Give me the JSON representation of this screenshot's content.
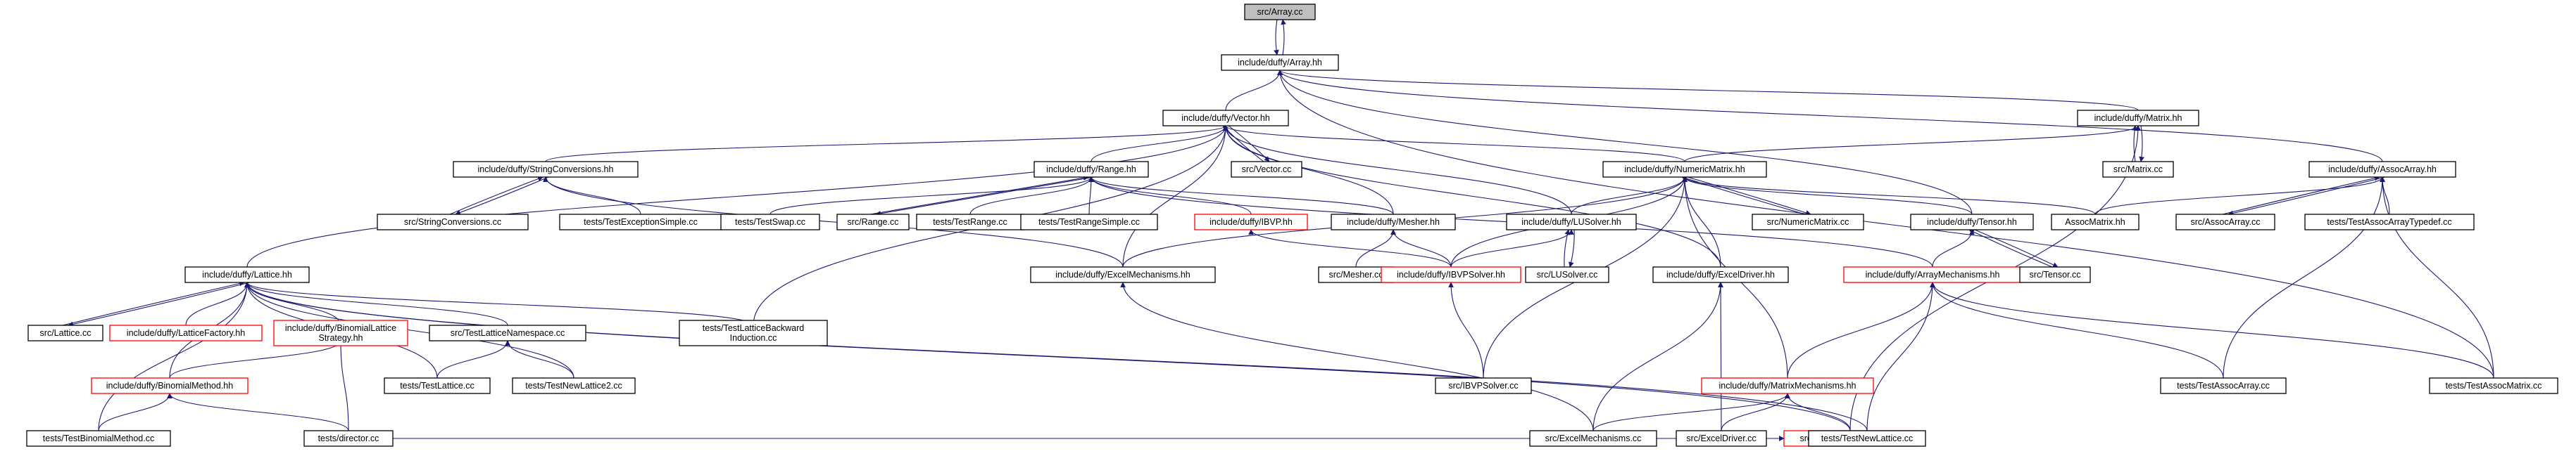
{
  "diagram": {
    "type": "include-dependency-graph",
    "nodes": [
      {
        "id": "array_cc",
        "label": "src/Array.cc",
        "style": "current"
      },
      {
        "id": "array_hh",
        "label": "include/duffy/Array.hh"
      },
      {
        "id": "vector_hh",
        "label": "include/duffy/Vector.hh"
      },
      {
        "id": "matrix_hh",
        "label": "include/duffy/Matrix.hh"
      },
      {
        "id": "assocarray_hh",
        "label": "include/duffy/AssocArray.hh"
      },
      {
        "id": "strconv_hh",
        "label": "include/duffy/StringConversions.hh"
      },
      {
        "id": "vector_cc",
        "label": "src/Vector.cc"
      },
      {
        "id": "range_hh",
        "label": "include/duffy/Range.hh"
      },
      {
        "id": "numericmatrix_hh",
        "label": "include/duffy/NumericMatrix.hh"
      },
      {
        "id": "matrix_cc",
        "label": "src/Matrix.cc"
      },
      {
        "id": "strconv_cc",
        "label": "src/StringConversions.cc"
      },
      {
        "id": "testexcsimple",
        "label": "tests/TestExceptionSimple.cc"
      },
      {
        "id": "testswap",
        "label": "tests/TestSwap.cc"
      },
      {
        "id": "range_cc",
        "label": "src/Range.cc"
      },
      {
        "id": "testrange",
        "label": "tests/TestRange.cc"
      },
      {
        "id": "testrangesimple",
        "label": "tests/TestRangeSimple.cc"
      },
      {
        "id": "ibvp_hh",
        "label": "include/duffy/IBVP.hh",
        "style": "red"
      },
      {
        "id": "mesher_hh",
        "label": "include/duffy/Mesher.hh"
      },
      {
        "id": "lusolver_hh",
        "label": "include/duffy/LUSolver.hh"
      },
      {
        "id": "numericmatrix_cc",
        "label": "src/NumericMatrix.cc"
      },
      {
        "id": "tensor_hh",
        "label": "include/duffy/Tensor.hh"
      },
      {
        "id": "assocmatrix_hh",
        "label": "AssocMatrix.hh"
      },
      {
        "id": "assocarray_cc",
        "label": "src/AssocArray.cc"
      },
      {
        "id": "testassocarraytypedef",
        "label": "tests/TestAssocArrayTypedef.cc"
      },
      {
        "id": "lattice_hh",
        "label": "include/duffy/Lattice.hh"
      },
      {
        "id": "excelmech_hh",
        "label": "include/duffy/ExcelMechanisms.hh"
      },
      {
        "id": "mesher_cc",
        "label": "src/Mesher.cc"
      },
      {
        "id": "ibvpsolver_hh",
        "label": "include/duffy/IBVPSolver.hh",
        "style": "red"
      },
      {
        "id": "lusolver_cc",
        "label": "src/LUSolver.cc"
      },
      {
        "id": "exceldriver_hh",
        "label": "include/duffy/ExcelDriver.hh"
      },
      {
        "id": "arraymech_hh",
        "label": "include/duffy/ArrayMechanisms.hh",
        "style": "red"
      },
      {
        "id": "tensor_cc",
        "label": "src/Tensor.cc"
      },
      {
        "id": "lattice_cc",
        "label": "src/Lattice.cc"
      },
      {
        "id": "latticefactory_hh",
        "label": "include/duffy/LatticeFactory.hh",
        "style": "red"
      },
      {
        "id": "binlatstrat_hh",
        "label": [
          "include/duffy/BinomialLattice",
          "Strategy.hh"
        ],
        "style": "red"
      },
      {
        "id": "testlatticens",
        "label": "src/TestLatticeNamespace.cc"
      },
      {
        "id": "testlatticebackward",
        "label": [
          "tests/TestLatticeBackward",
          "Induction.cc"
        ]
      },
      {
        "id": "ibvpsolver_cc",
        "label": "src/IBVPSolver.cc"
      },
      {
        "id": "matrixmech_hh",
        "label": "include/duffy/MatrixMechanisms.hh",
        "style": "red"
      },
      {
        "id": "testassocarray",
        "label": "tests/TestAssocArray.cc"
      },
      {
        "id": "testassocmatrix",
        "label": "tests/TestAssocMatrix.cc"
      },
      {
        "id": "binmethod_hh",
        "label": "include/duffy/BinomialMethod.hh",
        "style": "red"
      },
      {
        "id": "testlattice",
        "label": "tests/TestLattice.cc"
      },
      {
        "id": "testnewlattice2",
        "label": "tests/TestNewLattice2.cc"
      },
      {
        "id": "excelmech_cc",
        "label": "src/ExcelMechanisms.cc"
      },
      {
        "id": "exceldriver_cc",
        "label": "src/ExcelDriver.cc"
      },
      {
        "id": "latticemech_cc",
        "label": "src/LatticeMechanisms.cc",
        "style": "red"
      },
      {
        "id": "testbinmethod",
        "label": "tests/TestBinomialMethod.cc"
      },
      {
        "id": "director_cc",
        "label": "tests/director.cc"
      },
      {
        "id": "testnewlattice",
        "label": "tests/TestNewLattice.cc"
      }
    ],
    "edges": [
      [
        "array_hh",
        "array_cc"
      ],
      [
        "array_cc",
        "array_hh"
      ],
      [
        "vector_hh",
        "array_hh"
      ],
      [
        "matrix_hh",
        "array_hh"
      ],
      [
        "assocarray_hh",
        "array_hh"
      ],
      [
        "tensor_hh",
        "array_hh"
      ],
      [
        "testassocmatrix",
        "array_hh"
      ],
      [
        "strconv_hh",
        "vector_hh"
      ],
      [
        "vector_cc",
        "vector_hh"
      ],
      [
        "vector_hh",
        "vector_cc"
      ],
      [
        "range_hh",
        "vector_hh"
      ],
      [
        "numericmatrix_hh",
        "vector_hh"
      ],
      [
        "mesher_hh",
        "vector_hh"
      ],
      [
        "lattice_hh",
        "vector_hh"
      ],
      [
        "excelmech_hh",
        "vector_hh"
      ],
      [
        "testlatticebackward",
        "vector_hh"
      ],
      [
        "lusolver_hh",
        "vector_hh"
      ],
      [
        "exceldriver_hh",
        "vector_hh"
      ],
      [
        "numericmatrix_hh",
        "matrix_hh"
      ],
      [
        "matrix_cc",
        "matrix_hh"
      ],
      [
        "matrix_hh",
        "matrix_cc"
      ],
      [
        "latticemech_cc",
        "matrix_hh"
      ],
      [
        "assocarray_cc",
        "assocarray_hh"
      ],
      [
        "assocarray_hh",
        "assocarray_cc"
      ],
      [
        "testassocarraytypedef",
        "assocarray_hh"
      ],
      [
        "assocmatrix_hh",
        "assocarray_hh"
      ],
      [
        "testassocarray",
        "assocarray_hh"
      ],
      [
        "testassocmatrix",
        "assocarray_hh"
      ],
      [
        "strconv_cc",
        "strconv_hh"
      ],
      [
        "strconv_hh",
        "strconv_cc"
      ],
      [
        "testexcsimple",
        "strconv_hh"
      ],
      [
        "excelmech_hh",
        "strconv_hh"
      ],
      [
        "testswap",
        "range_hh"
      ],
      [
        "range_cc",
        "range_hh"
      ],
      [
        "range_hh",
        "range_cc"
      ],
      [
        "testrange",
        "range_hh"
      ],
      [
        "testrangesimple",
        "range_hh"
      ],
      [
        "ibvp_hh",
        "range_hh"
      ],
      [
        "mesher_hh",
        "range_hh"
      ],
      [
        "arraymech_hh",
        "range_hh"
      ],
      [
        "lusolver_hh",
        "numericmatrix_hh"
      ],
      [
        "numericmatrix_cc",
        "numericmatrix_hh"
      ],
      [
        "numericmatrix_hh",
        "numericmatrix_cc"
      ],
      [
        "tensor_hh",
        "numericmatrix_hh"
      ],
      [
        "assocmatrix_hh",
        "numericmatrix_hh"
      ],
      [
        "excelmech_hh",
        "numericmatrix_hh"
      ],
      [
        "exceldriver_hh",
        "numericmatrix_hh"
      ],
      [
        "ibvpsolver_hh",
        "numericmatrix_hh"
      ],
      [
        "matrixmech_hh",
        "numericmatrix_hh"
      ],
      [
        "ibvpsolver_cc",
        "numericmatrix_hh"
      ],
      [
        "ibvpsolver_hh",
        "ibvp_hh"
      ],
      [
        "mesher_cc",
        "mesher_hh"
      ],
      [
        "ibvpsolver_hh",
        "mesher_hh"
      ],
      [
        "lusolver_cc",
        "lusolver_hh"
      ],
      [
        "lusolver_hh",
        "lusolver_cc"
      ],
      [
        "ibvpsolver_hh",
        "lusolver_hh"
      ],
      [
        "tensor_cc",
        "tensor_hh"
      ],
      [
        "tensor_hh",
        "tensor_cc"
      ],
      [
        "arraymech_hh",
        "tensor_hh"
      ],
      [
        "lattice_cc",
        "lattice_hh"
      ],
      [
        "lattice_hh",
        "lattice_cc"
      ],
      [
        "latticefactory_hh",
        "lattice_hh"
      ],
      [
        "binlatstrat_hh",
        "lattice_hh"
      ],
      [
        "testlatticens",
        "lattice_hh"
      ],
      [
        "testlatticebackward",
        "lattice_hh"
      ],
      [
        "binmethod_hh",
        "lattice_hh"
      ],
      [
        "testlattice",
        "lattice_hh"
      ],
      [
        "testnewlattice2",
        "lattice_hh"
      ],
      [
        "testbinmethod",
        "lattice_hh"
      ],
      [
        "latticemech_cc",
        "lattice_hh"
      ],
      [
        "testnewlattice",
        "lattice_hh"
      ],
      [
        "excelmech_cc",
        "excelmech_hh"
      ],
      [
        "ibvpsolver_cc",
        "ibvpsolver_hh"
      ],
      [
        "excelmech_cc",
        "exceldriver_hh"
      ],
      [
        "exceldriver_cc",
        "exceldriver_hh"
      ],
      [
        "matrixmech_hh",
        "arraymech_hh"
      ],
      [
        "testassocarray",
        "arraymech_hh"
      ],
      [
        "testassocmatrix",
        "arraymech_hh"
      ],
      [
        "testnewlattice",
        "arraymech_hh"
      ],
      [
        "tensor_cc",
        "arraymech_hh"
      ],
      [
        "binmethod_hh",
        "binlatstrat_hh"
      ],
      [
        "director_cc",
        "binlatstrat_hh"
      ],
      [
        "testlattice",
        "testlatticens"
      ],
      [
        "testnewlattice2",
        "testlatticens"
      ],
      [
        "excelmech_cc",
        "matrixmech_hh"
      ],
      [
        "exceldriver_cc",
        "matrixmech_hh"
      ],
      [
        "latticemech_cc",
        "matrixmech_hh"
      ],
      [
        "testbinmethod",
        "binmethod_hh"
      ],
      [
        "director_cc",
        "binmethod_hh"
      ],
      [
        "director_cc",
        "latticemech_cc"
      ],
      [
        "testnewlattice",
        "latticemech_cc"
      ]
    ]
  }
}
